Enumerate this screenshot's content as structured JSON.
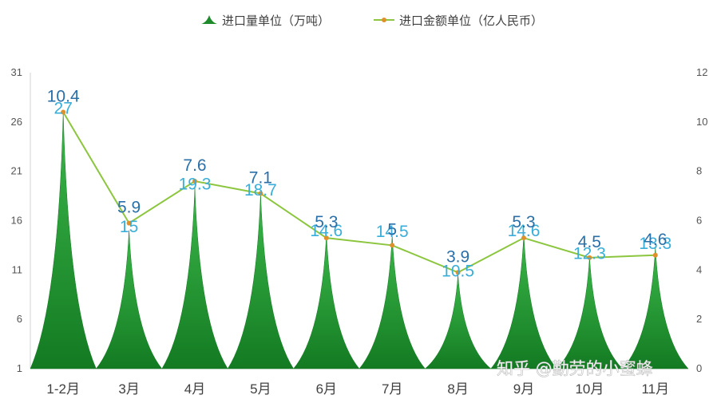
{
  "chart_data": {
    "type": "bar",
    "categories": [
      "1-2月",
      "3月",
      "4月",
      "5月",
      "6月",
      "7月",
      "8月",
      "9月",
      "10月",
      "11月"
    ],
    "series": [
      {
        "name": "进口量单位（万吨）",
        "axis": "left",
        "mark": "triangle-spike",
        "color": "#1f8a2b",
        "label_color": "#3aaed8",
        "values": [
          27,
          15,
          19.3,
          18.7,
          14.6,
          14.5,
          10.5,
          14.6,
          12.3,
          13.3
        ]
      },
      {
        "name": "进口金额单位（亿人民币）",
        "axis": "right",
        "mark": "line",
        "color": "#8cc63f",
        "marker_color": "#e0902a",
        "label_color": "#2a6fa8",
        "values": [
          10.4,
          5.9,
          7.6,
          7.1,
          5.3,
          5,
          3.9,
          5.3,
          4.5,
          4.6
        ]
      }
    ],
    "y_left": {
      "min": 1,
      "max": 31,
      "ticks": [
        1,
        6,
        11,
        16,
        21,
        26,
        31
      ]
    },
    "y_right": {
      "min": 0,
      "max": 12,
      "ticks": [
        0,
        2,
        4,
        6,
        8,
        10,
        12
      ]
    },
    "legend_position": "top-center",
    "grid": false
  },
  "watermark": "知乎 @勤劳的小蜜蜂"
}
